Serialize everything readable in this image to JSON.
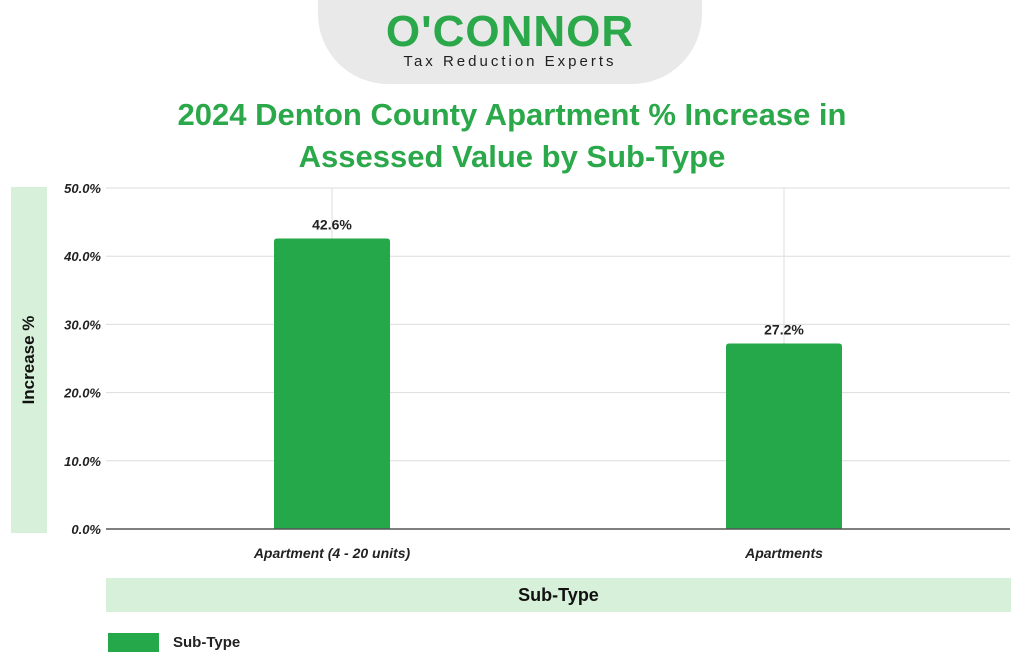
{
  "logo": {
    "name": "O'CONNOR",
    "tagline": "Tax Reduction Experts"
  },
  "colors": {
    "brand_green": "#2aa84a",
    "bar": "#25a84a",
    "band": "#d6f0da",
    "grid": "#dddddd"
  },
  "chart_data": {
    "type": "bar",
    "title": "2024 Denton County Apartment % Increase in Assessed Value by Sub-Type",
    "title_lines": [
      "2024 Denton County Apartment % Increase in",
      "Assessed Value by Sub-Type"
    ],
    "xlabel": "Sub-Type",
    "ylabel": "Increase %",
    "categories": [
      "Apartment (4 - 20 units)",
      "Apartments"
    ],
    "series": [
      {
        "name": "Sub-Type",
        "values": [
          42.6,
          27.2
        ],
        "labels": [
          "42.6%",
          "27.2%"
        ]
      }
    ],
    "ylim": [
      0,
      50
    ],
    "yticks": [
      0,
      10,
      20,
      30,
      40,
      50
    ],
    "ytick_labels": [
      "0.0%",
      "10.0%",
      "20.0%",
      "30.0%",
      "40.0%",
      "50.0%"
    ],
    "grid": true,
    "legend": {
      "position": "bottom-left",
      "entries": [
        "Sub-Type"
      ]
    }
  }
}
